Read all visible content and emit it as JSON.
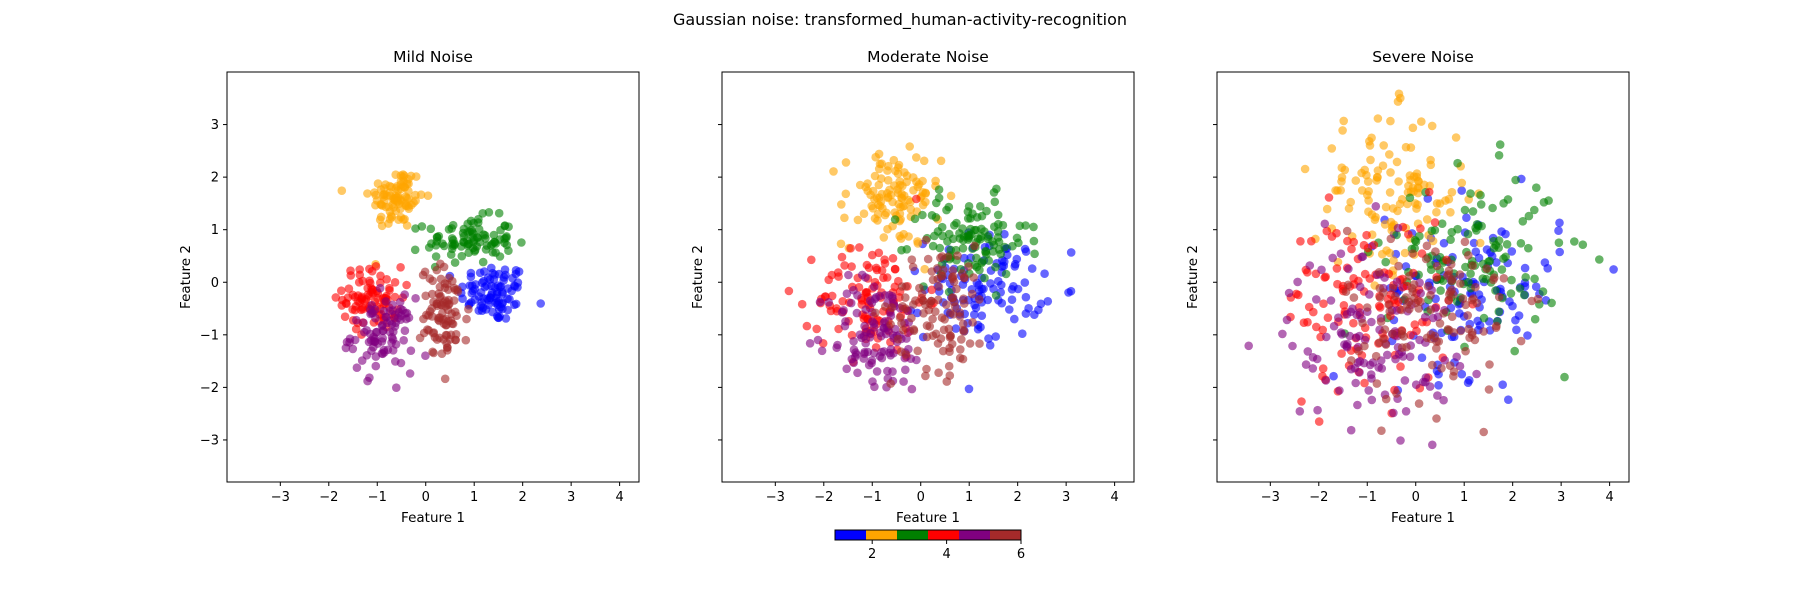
{
  "figure": {
    "suptitle": "Gaussian noise: transformed_human-activity-recognition"
  },
  "chart_data": [
    {
      "type": "scatter",
      "title": "Mild Noise",
      "xlabel": "Feature 1",
      "ylabel": "Feature 2",
      "xlim": [
        -4.1,
        4.4
      ],
      "ylim": [
        -3.8,
        4.0
      ],
      "xticks": [
        -3,
        -2,
        -1,
        0,
        1,
        2,
        3,
        4
      ],
      "yticks": [
        -3,
        -2,
        -1,
        0,
        1,
        2,
        3
      ],
      "show_yticklabels": true,
      "clusters": [
        {
          "class": 1,
          "color": "#0000ff",
          "cx": 1.4,
          "cy": -0.2,
          "sx": 0.35,
          "sy": 0.28,
          "n": 90
        },
        {
          "class": 2,
          "color": "#ffa500",
          "cx": -0.6,
          "cy": 1.6,
          "sx": 0.28,
          "sy": 0.3,
          "n": 90
        },
        {
          "class": 3,
          "color": "#008000",
          "cx": 0.9,
          "cy": 0.8,
          "sx": 0.45,
          "sy": 0.22,
          "n": 90
        },
        {
          "class": 4,
          "color": "#ff0000",
          "cx": -1.1,
          "cy": -0.3,
          "sx": 0.3,
          "sy": 0.3,
          "n": 90
        },
        {
          "class": 5,
          "color": "#800080",
          "cx": -0.9,
          "cy": -1.0,
          "sx": 0.32,
          "sy": 0.35,
          "n": 90
        },
        {
          "class": 6,
          "color": "#a52a2a",
          "cx": 0.4,
          "cy": -0.6,
          "sx": 0.25,
          "sy": 0.45,
          "n": 90
        }
      ]
    },
    {
      "type": "scatter",
      "title": "Moderate Noise",
      "xlabel": "Feature 1",
      "ylabel": "Feature 2",
      "xlim": [
        -4.1,
        4.4
      ],
      "ylim": [
        -3.8,
        4.0
      ],
      "xticks": [
        -3,
        -2,
        -1,
        0,
        1,
        2,
        3,
        4
      ],
      "yticks": [
        -3,
        -2,
        -1,
        0,
        1,
        2,
        3
      ],
      "show_yticklabels": false,
      "clusters": [
        {
          "class": 1,
          "color": "#0000ff",
          "cx": 1.3,
          "cy": -0.1,
          "sx": 0.6,
          "sy": 0.5,
          "n": 110
        },
        {
          "class": 2,
          "color": "#ffa500",
          "cx": -0.6,
          "cy": 1.6,
          "sx": 0.5,
          "sy": 0.45,
          "n": 110
        },
        {
          "class": 3,
          "color": "#008000",
          "cx": 1.0,
          "cy": 0.8,
          "sx": 0.6,
          "sy": 0.4,
          "n": 110
        },
        {
          "class": 4,
          "color": "#ff0000",
          "cx": -1.0,
          "cy": -0.3,
          "sx": 0.55,
          "sy": 0.55,
          "n": 110
        },
        {
          "class": 5,
          "color": "#800080",
          "cx": -0.9,
          "cy": -1.0,
          "sx": 0.5,
          "sy": 0.55,
          "n": 110
        },
        {
          "class": 6,
          "color": "#a52a2a",
          "cx": 0.4,
          "cy": -0.5,
          "sx": 0.5,
          "sy": 0.6,
          "n": 110
        }
      ]
    },
    {
      "type": "scatter",
      "title": "Severe Noise",
      "xlabel": "Feature 1",
      "ylabel": "Feature 2",
      "xlim": [
        -4.1,
        4.4
      ],
      "ylim": [
        -3.8,
        4.0
      ],
      "xticks": [
        -3,
        -2,
        -1,
        0,
        1,
        2,
        3,
        4
      ],
      "yticks": [
        -3,
        -2,
        -1,
        0,
        1,
        2,
        3
      ],
      "show_yticklabels": false,
      "clusters": [
        {
          "class": 1,
          "color": "#0000ff",
          "cx": 1.2,
          "cy": -0.1,
          "sx": 0.9,
          "sy": 0.8,
          "n": 120
        },
        {
          "class": 2,
          "color": "#ffa500",
          "cx": -0.5,
          "cy": 1.7,
          "sx": 0.8,
          "sy": 0.75,
          "n": 120
        },
        {
          "class": 3,
          "color": "#008000",
          "cx": 1.2,
          "cy": 0.5,
          "sx": 0.9,
          "sy": 0.8,
          "n": 120
        },
        {
          "class": 4,
          "color": "#ff0000",
          "cx": -1.0,
          "cy": -0.4,
          "sx": 0.85,
          "sy": 0.85,
          "n": 120
        },
        {
          "class": 5,
          "color": "#800080",
          "cx": -0.9,
          "cy": -1.0,
          "sx": 0.85,
          "sy": 0.85,
          "n": 120
        },
        {
          "class": 6,
          "color": "#a52a2a",
          "cx": 0.3,
          "cy": -0.6,
          "sx": 0.85,
          "sy": 0.85,
          "n": 120
        }
      ]
    }
  ],
  "colorbar": {
    "colors": [
      "#0000ff",
      "#ffa500",
      "#008000",
      "#ff0000",
      "#800080",
      "#a52a2a"
    ],
    "range": [
      1,
      6
    ],
    "ticks": [
      2,
      4,
      6
    ]
  }
}
